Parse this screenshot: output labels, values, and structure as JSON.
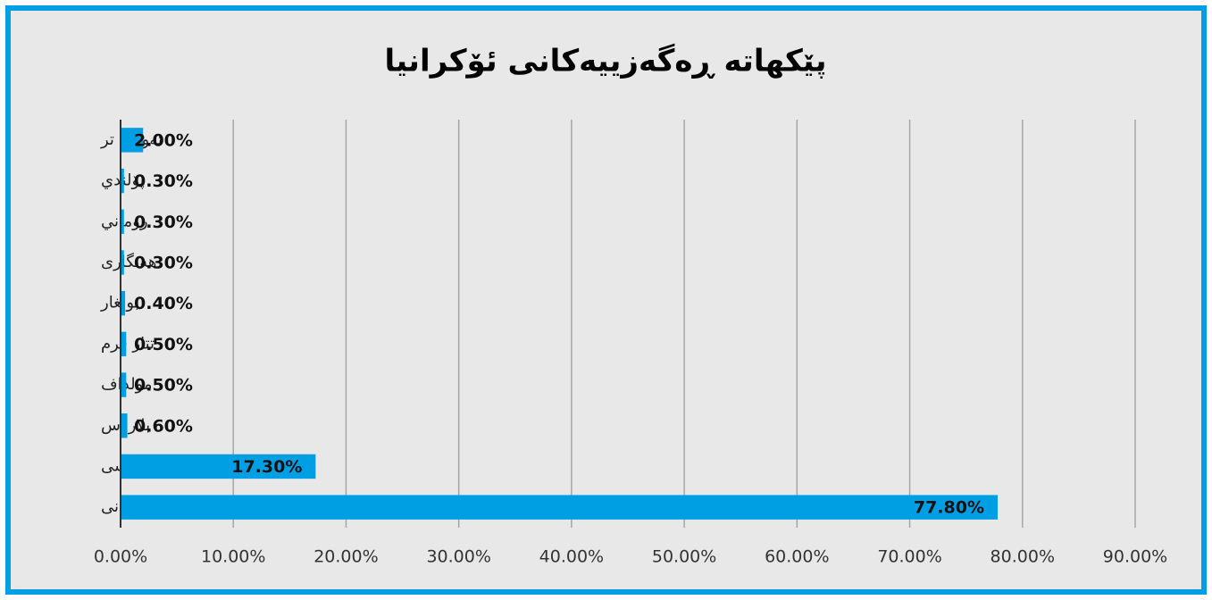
{
  "chart_data": {
    "type": "hbar",
    "title": "پێکهاتە ڕەگەزییەکانی ئۆکرانیا",
    "categories": [
      "ئەوانی تر",
      "پۆلندي",
      "روماني",
      "هەنگاری",
      "بولغار",
      "تتار قرم",
      "مولداف",
      "بلاروس",
      "روسی",
      "ئۆکرانی"
    ],
    "values": [
      2.0,
      0.3,
      0.3,
      0.3,
      0.4,
      0.5,
      0.5,
      0.6,
      17.3,
      77.8
    ],
    "value_labels": [
      "2.00%",
      "0.30%",
      "0.30%",
      "0.30%",
      "0.40%",
      "0.50%",
      "0.50%",
      "0.60%",
      "17.30%",
      "77.80%"
    ],
    "color": "#009fe3",
    "xlim": [
      0,
      90
    ],
    "xticks": [
      {
        "value": 0,
        "label": "0.00%"
      },
      {
        "value": 10,
        "label": "10.00%"
      },
      {
        "value": 20,
        "label": "20.00%"
      },
      {
        "value": 30,
        "label": "30.00%"
      },
      {
        "value": 40,
        "label": "40.00%"
      },
      {
        "value": 50,
        "label": "50.00%"
      },
      {
        "value": 60,
        "label": "60.00%"
      },
      {
        "value": 70,
        "label": "70.00%"
      },
      {
        "value": 80,
        "label": "80.00%"
      },
      {
        "value": 90,
        "label": "90.00%"
      }
    ],
    "grid": true
  }
}
